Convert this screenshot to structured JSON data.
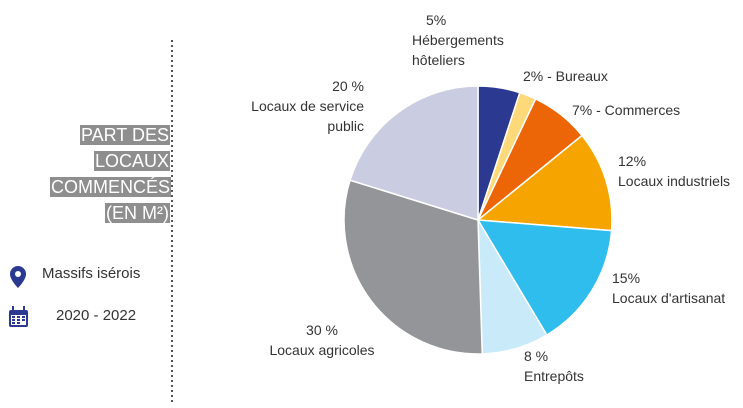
{
  "chart_data": {
    "type": "pie",
    "title": "PART DES LOCAUX COMMENCÉS (EN M²)",
    "location": "Massifs isérois",
    "period": "2020 - 2022",
    "categories": [
      "Hébergements hôteliers",
      null,
      null,
      "Locaux industriels",
      "Locaux d'artisanat",
      "Entrepôts",
      "Locaux agricoles",
      "Locaux de service public"
    ],
    "values": [
      5,
      2,
      7,
      12,
      15,
      8,
      30,
      20
    ],
    "value_labels": [
      "5%",
      "2% - Bureaux",
      "7% - Commerces",
      "12%",
      "15%",
      "8 %",
      "30 %",
      "20 %"
    ],
    "colors": [
      "#2b3990",
      "#fdd97a",
      "#ec6608",
      "#f6a500",
      "#2fbdee",
      "#c8eaf9",
      "#939598",
      "#cacce1"
    ]
  }
}
